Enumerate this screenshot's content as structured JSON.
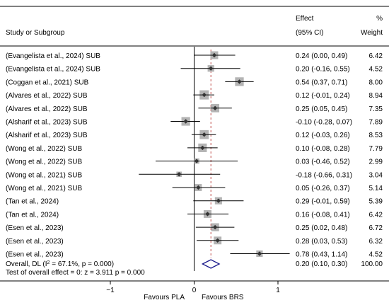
{
  "chart_data": {
    "type": "forest",
    "headers": {
      "study": "Study or Subgroup",
      "effect_line1": "Effect",
      "effect_line2": "(95% CI)",
      "weight_line1": "%",
      "weight_line2": "Weight"
    },
    "xlim": [
      -2.15,
      1.75
    ],
    "xticks": [
      -1,
      0,
      1
    ],
    "xtick_labels": [
      "−1",
      "0",
      "1"
    ],
    "null_line": 0,
    "axis_left_label": "Favours PLA",
    "axis_right_label": "Favours BRS",
    "studies": [
      {
        "label": "(Evangelista et al., 2024) SUB",
        "effect": 0.24,
        "lo": 0.0,
        "hi": 0.49,
        "ci_text": "0.24 (0.00, 0.49)",
        "weight": 6.42,
        "weight_text": "6.42"
      },
      {
        "label": "(Evangelista et al., 2024) SUB",
        "effect": 0.2,
        "lo": -0.16,
        "hi": 0.55,
        "ci_text": "0.20 (-0.16, 0.55)",
        "weight": 4.52,
        "weight_text": "4.52"
      },
      {
        "label": "(Coggan et al., 2021) SUB",
        "effect": 0.54,
        "lo": 0.37,
        "hi": 0.71,
        "ci_text": "0.54 (0.37, 0.71)",
        "weight": 8.0,
        "weight_text": "8.00"
      },
      {
        "label": "(Alvares et al., 2022) SUB",
        "effect": 0.12,
        "lo": -0.01,
        "hi": 0.24,
        "ci_text": "0.12 (-0.01, 0.24)",
        "weight": 8.94,
        "weight_text": "8.94"
      },
      {
        "label": "(Alvares et al., 2022) SUB",
        "effect": 0.25,
        "lo": 0.05,
        "hi": 0.45,
        "ci_text": "0.25 (0.05, 0.45)",
        "weight": 7.35,
        "weight_text": "7.35"
      },
      {
        "label": "(Alsharif et al., 2023) SUB",
        "effect": -0.1,
        "lo": -0.28,
        "hi": 0.07,
        "ci_text": "-0.10 (-0.28, 0.07)",
        "weight": 7.89,
        "weight_text": "7.89"
      },
      {
        "label": "(Alsharif et al., 2023) SUB",
        "effect": 0.12,
        "lo": -0.03,
        "hi": 0.26,
        "ci_text": "0.12 (-0.03, 0.26)",
        "weight": 8.53,
        "weight_text": "8.53"
      },
      {
        "label": "(Wong et al., 2022) SUB",
        "effect": 0.1,
        "lo": -0.08,
        "hi": 0.28,
        "ci_text": "0.10 (-0.08, 0.28)",
        "weight": 7.79,
        "weight_text": "7.79"
      },
      {
        "label": "(Wong et al., 2022) SUB",
        "effect": 0.03,
        "lo": -0.46,
        "hi": 0.52,
        "ci_text": "0.03 (-0.46, 0.52)",
        "weight": 2.99,
        "weight_text": "2.99"
      },
      {
        "label": "(Wong et al., 2021) SUB",
        "effect": -0.18,
        "lo": -0.66,
        "hi": 0.31,
        "ci_text": "-0.18 (-0.66, 0.31)",
        "weight": 3.04,
        "weight_text": "3.04"
      },
      {
        "label": "(Wong et al., 2021) SUB",
        "effect": 0.05,
        "lo": -0.26,
        "hi": 0.37,
        "ci_text": "0.05 (-0.26, 0.37)",
        "weight": 5.14,
        "weight_text": "5.14"
      },
      {
        "label": "(Tan et al., 2024)",
        "effect": 0.29,
        "lo": -0.01,
        "hi": 0.59,
        "ci_text": "0.29 (-0.01, 0.59)",
        "weight": 5.39,
        "weight_text": "5.39"
      },
      {
        "label": "(Tan et al., 2024)",
        "effect": 0.16,
        "lo": -0.08,
        "hi": 0.41,
        "ci_text": "0.16 (-0.08, 0.41)",
        "weight": 6.42,
        "weight_text": "6.42"
      },
      {
        "label": "(Esen et al., 2023)",
        "effect": 0.25,
        "lo": 0.02,
        "hi": 0.48,
        "ci_text": "0.25 (0.02, 0.48)",
        "weight": 6.72,
        "weight_text": "6.72"
      },
      {
        "label": "(Esen et al., 2023)",
        "effect": 0.28,
        "lo": 0.03,
        "hi": 0.53,
        "ci_text": "0.28 (0.03, 0.53)",
        "weight": 6.32,
        "weight_text": "6.32"
      },
      {
        "label": "(Esen et al., 2023)",
        "effect": 0.78,
        "lo": 0.43,
        "hi": 1.14,
        "ci_text": "0.78 (0.43, 1.14)",
        "weight": 4.52,
        "weight_text": "4.52"
      }
    ],
    "overall": {
      "label_prefix": "Overall, DL (I",
      "label_sup": "2",
      "label_suffix": " = 67.1%, p = 0.000)",
      "effect": 0.2,
      "lo": 0.1,
      "hi": 0.3,
      "ci_text": "0.20 (0.10, 0.30)",
      "weight_text": "100.00"
    },
    "test_text": "Test of overall effect = 0:  z =   3.911  p = 0.000",
    "colors": {
      "box": "#b4b4b4",
      "ci_line": "#000000",
      "diamond": "#1a1a8c",
      "pooled_line": "#c0504d",
      "axis": "#000000"
    }
  }
}
